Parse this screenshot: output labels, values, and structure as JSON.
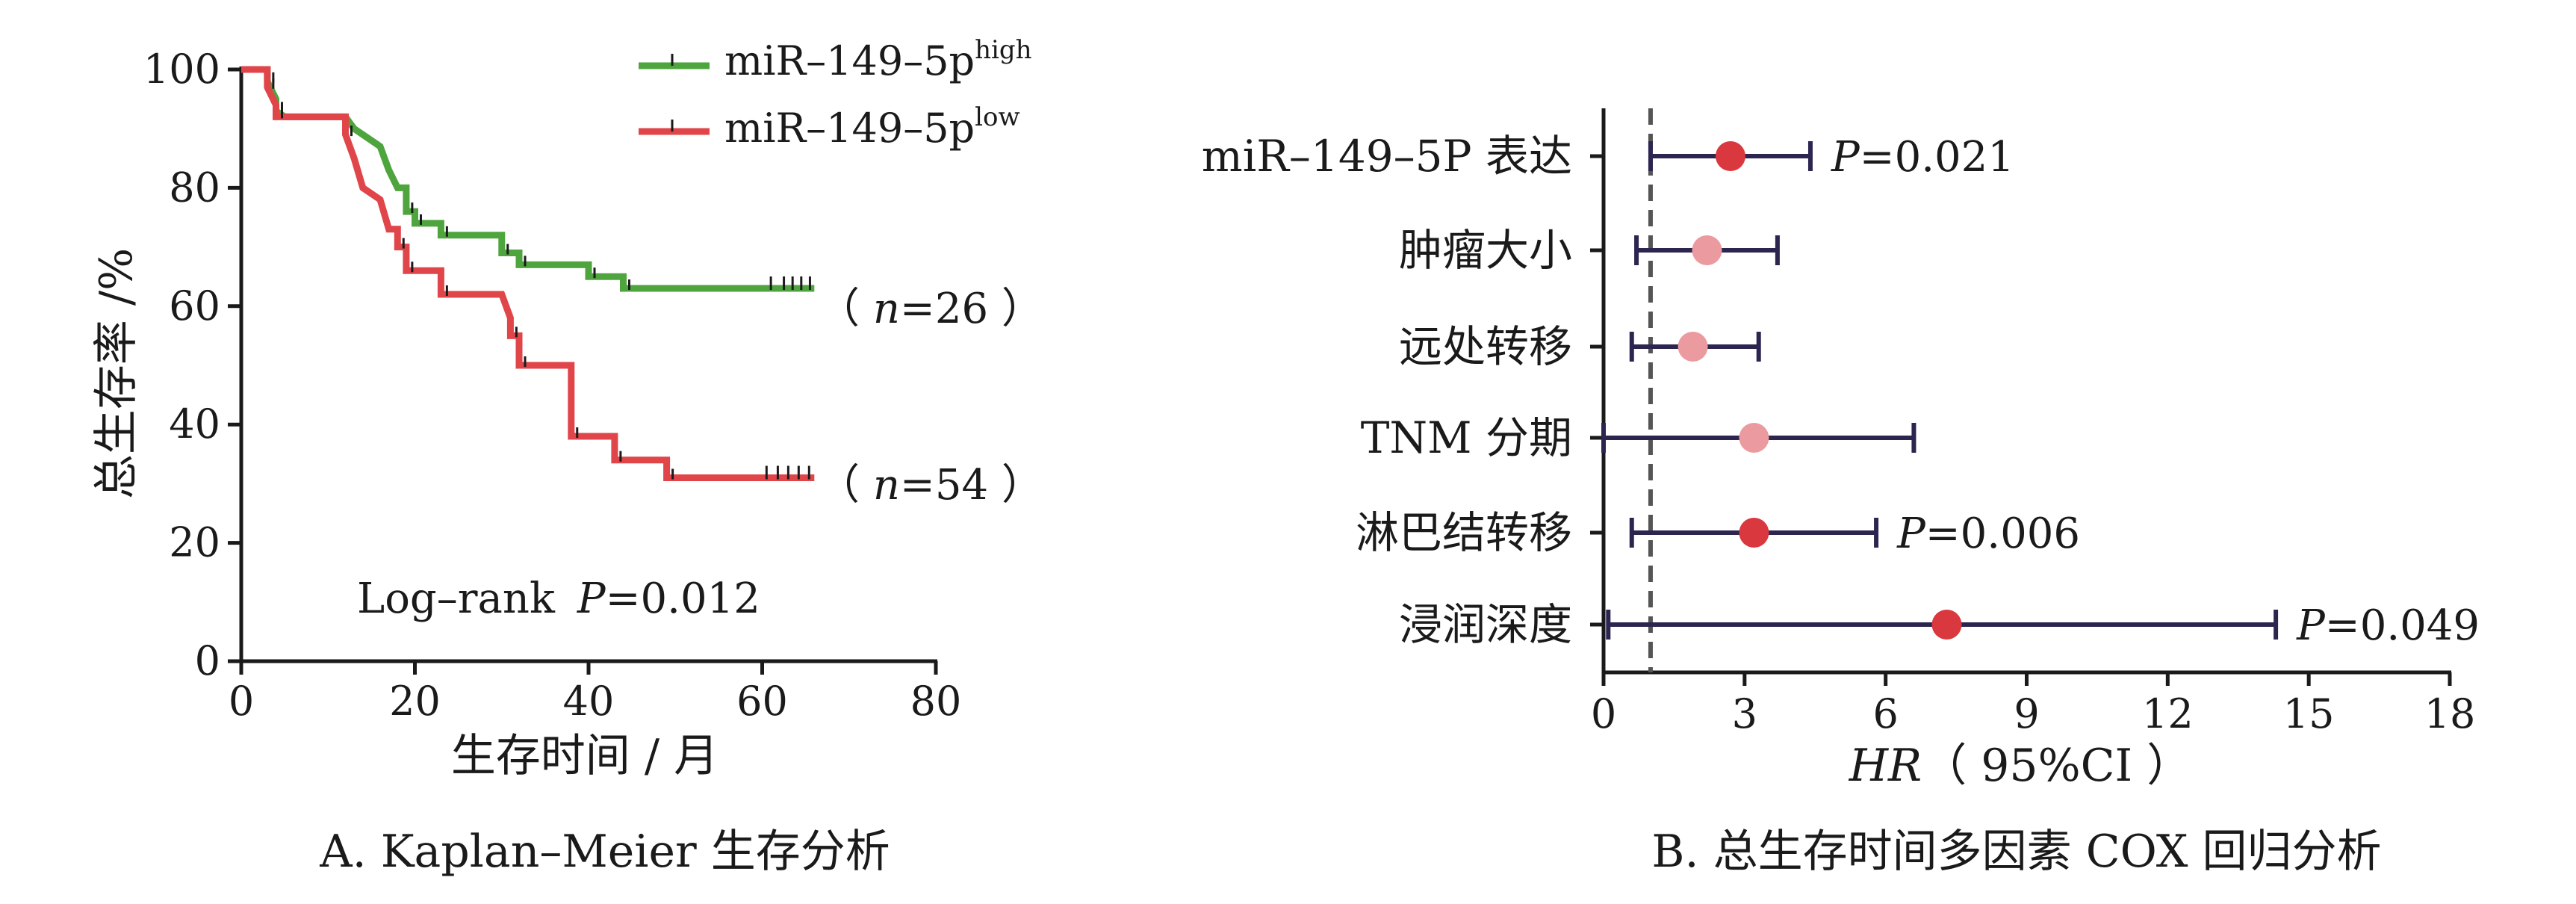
{
  "colors": {
    "high": "#4ea53d",
    "low": "#e0454a",
    "ci_line": "#2b2550",
    "sig_point": "#d9383f",
    "nonsig_point": "#eb9b9f",
    "ref_line": "#555555",
    "axis": "#1a1a1a"
  },
  "panelA": {
    "caption": "A. Kaplan–Meier 生存分析",
    "logrank_prefix": "Log–rank",
    "logrank_p_label": "P",
    "logrank_p_value": "=0.012",
    "legend": [
      {
        "base": "miR–149–5p",
        "sup": "high"
      },
      {
        "base": "miR–149–5p",
        "sup": "low"
      }
    ],
    "n_labels": [
      {
        "open": "（ ",
        "var": "n",
        "value": "=26 ）"
      },
      {
        "open": "（ ",
        "var": "n",
        "value": "=54 ）"
      }
    ]
  },
  "panelB": {
    "caption": "B. 总生存时间多因素 COX 回归分析",
    "xlabel_var": "HR",
    "xlabel_rest": "（ 95%CI ）"
  },
  "chart_data": [
    {
      "type": "line",
      "subtype": "kaplan-meier",
      "xlabel": "生存时间 / 月",
      "ylabel": "总生存率 /%",
      "xlim": [
        0,
        80
      ],
      "ylim": [
        0,
        100
      ],
      "xticks": [
        "0",
        "20",
        "40",
        "60",
        "80"
      ],
      "yticks": [
        "0",
        "20",
        "40",
        "60",
        "80",
        "100"
      ],
      "series": [
        {
          "name": "miR–149–5p high",
          "steps": [
            [
              0,
              100
            ],
            [
              3,
              100
            ],
            [
              3,
              98
            ],
            [
              4,
              95
            ],
            [
              4,
              93
            ],
            [
              5,
              92
            ],
            [
              12,
              92
            ],
            [
              13,
              90
            ],
            [
              16,
              87
            ],
            [
              17,
              83
            ],
            [
              18,
              80
            ],
            [
              19,
              80
            ],
            [
              19,
              76
            ],
            [
              20,
              76
            ],
            [
              20,
              74
            ],
            [
              23,
              74
            ],
            [
              23,
              72
            ],
            [
              30,
              72
            ],
            [
              30,
              69
            ],
            [
              32,
              69
            ],
            [
              32,
              67
            ],
            [
              40,
              67
            ],
            [
              40,
              65
            ],
            [
              44,
              65
            ],
            [
              44,
              63
            ],
            [
              66,
              63
            ]
          ],
          "censor_x": [
            61,
            62.5,
            63.5,
            64.5,
            65.5
          ]
        },
        {
          "name": "miR–149–5p low",
          "steps": [
            [
              0,
              100
            ],
            [
              3,
              100
            ],
            [
              3,
              97
            ],
            [
              4,
              94
            ],
            [
              4,
              92
            ],
            [
              12,
              92
            ],
            [
              12,
              89
            ],
            [
              13,
              85
            ],
            [
              14,
              80
            ],
            [
              16,
              78
            ],
            [
              17,
              73
            ],
            [
              18,
              73
            ],
            [
              18,
              70
            ],
            [
              19,
              70
            ],
            [
              19,
              66
            ],
            [
              23,
              66
            ],
            [
              23,
              62
            ],
            [
              30,
              62
            ],
            [
              31,
              58
            ],
            [
              31,
              55
            ],
            [
              32,
              55
            ],
            [
              32,
              50
            ],
            [
              38,
              50
            ],
            [
              38,
              38
            ],
            [
              43,
              38
            ],
            [
              43,
              34
            ],
            [
              49,
              34
            ],
            [
              49,
              31
            ],
            [
              66,
              31
            ]
          ],
          "censor_x": [
            60.5,
            61.8,
            63,
            64.2,
            65.4
          ]
        }
      ]
    },
    {
      "type": "scatter",
      "subtype": "forest-plot",
      "xlim": [
        0,
        18
      ],
      "xticks": [
        "0",
        "3",
        "6",
        "9",
        "12",
        "15",
        "18"
      ],
      "reference_line": 1,
      "rows": [
        {
          "label": "miR–149–5P 表达",
          "hr": 2.7,
          "lower": 1.0,
          "upper": 4.4,
          "significant": true,
          "p_label": "P",
          "p_value": "=0.021"
        },
        {
          "label": "肿瘤大小",
          "hr": 2.2,
          "lower": 0.7,
          "upper": 3.7,
          "significant": false,
          "p_label": "",
          "p_value": ""
        },
        {
          "label": "远处转移",
          "hr": 1.9,
          "lower": 0.6,
          "upper": 3.3,
          "significant": false,
          "p_label": "",
          "p_value": ""
        },
        {
          "label": "TNM 分期",
          "hr": 3.2,
          "lower": 0.0,
          "upper": 6.6,
          "significant": false,
          "p_label": "",
          "p_value": ""
        },
        {
          "label": "淋巴结转移",
          "hr": 3.2,
          "lower": 0.6,
          "upper": 5.8,
          "significant": true,
          "p_label": "P",
          "p_value": "=0.006"
        },
        {
          "label": "浸润深度",
          "hr": 7.3,
          "lower": 0.1,
          "upper": 14.3,
          "significant": true,
          "p_label": "P",
          "p_value": "=0.049"
        }
      ]
    }
  ]
}
